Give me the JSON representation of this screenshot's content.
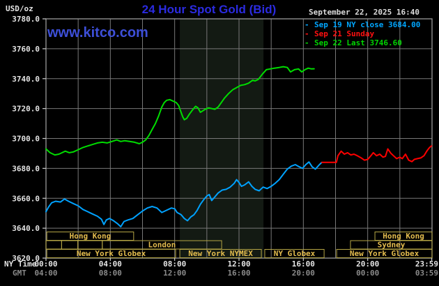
{
  "header": {
    "unit_label": "USD/oz",
    "title": "24 Hour Spot Gold (Bid)",
    "watermark": "www.kitco.com",
    "datetime": "September 22, 2025 16:40"
  },
  "legend": {
    "items": [
      {
        "dash": "-",
        "label": "Sep 19 NY close 3684.00",
        "color": "#00a6ff"
      },
      {
        "dash": "-",
        "label": "Sep 21 Sunday",
        "color": "#ff1010"
      },
      {
        "dash": "-",
        "label": "Sep 22 Last 3746.60",
        "color": "#00d400"
      }
    ]
  },
  "axis_corner": {
    "ny_time": "NY Time",
    "gmt": "GMT"
  },
  "chart_data": {
    "type": "line",
    "title": "24 Hour Spot Gold (Bid)",
    "ylabel": "USD/oz",
    "ylim": [
      3620,
      3780
    ],
    "y_step": 20,
    "x_range_hours": [
      0,
      24
    ],
    "x_grid_step_hours": 2,
    "grid_color": "#787878",
    "border_color": "#9a9a9a",
    "nymex_band": {
      "start_h": 8.32,
      "end_h": 13.52,
      "color": "#131a13"
    },
    "x_ticks": [
      {
        "t": 0,
        "ny": "00:00",
        "gmt": "04:00"
      },
      {
        "t": 4,
        "ny": "04:00",
        "gmt": "08:00"
      },
      {
        "t": 8,
        "ny": "08:00",
        "gmt": "12:00"
      },
      {
        "t": 12,
        "ny": "12:00",
        "gmt": "16:00"
      },
      {
        "t": 16,
        "ny": "16:00",
        "gmt": "20:00"
      },
      {
        "t": 20,
        "ny": "20:00",
        "gmt": "00:00"
      },
      {
        "t": 23.983,
        "ny": "23:59",
        "gmt": "03:59",
        "align_end": true
      }
    ],
    "series": [
      {
        "name": "Sep 19 NY close",
        "color": "#00a2ff",
        "last": 3684.0,
        "points": [
          [
            0.0,
            3651
          ],
          [
            0.15,
            3654
          ],
          [
            0.35,
            3657
          ],
          [
            0.6,
            3658
          ],
          [
            0.9,
            3657.5
          ],
          [
            1.15,
            3659.5
          ],
          [
            1.4,
            3658
          ],
          [
            1.7,
            3656.5
          ],
          [
            2.0,
            3655
          ],
          [
            2.3,
            3652.5
          ],
          [
            2.6,
            3651
          ],
          [
            2.9,
            3649.5
          ],
          [
            3.2,
            3648
          ],
          [
            3.45,
            3646
          ],
          [
            3.6,
            3642.5
          ],
          [
            3.75,
            3645.5
          ],
          [
            3.95,
            3646.5
          ],
          [
            4.2,
            3645
          ],
          [
            4.45,
            3643
          ],
          [
            4.65,
            3641
          ],
          [
            4.85,
            3644.5
          ],
          [
            5.1,
            3645.5
          ],
          [
            5.4,
            3646.5
          ],
          [
            5.7,
            3649
          ],
          [
            6.0,
            3651.5
          ],
          [
            6.3,
            3653.5
          ],
          [
            6.6,
            3654.5
          ],
          [
            6.9,
            3653.5
          ],
          [
            7.2,
            3650.5
          ],
          [
            7.5,
            3652
          ],
          [
            7.8,
            3653.5
          ],
          [
            8.0,
            3653
          ],
          [
            8.15,
            3650.5
          ],
          [
            8.4,
            3649
          ],
          [
            8.6,
            3646.5
          ],
          [
            8.8,
            3645
          ],
          [
            9.0,
            3647.5
          ],
          [
            9.2,
            3649
          ],
          [
            9.4,
            3652
          ],
          [
            9.6,
            3656
          ],
          [
            9.8,
            3659
          ],
          [
            10.0,
            3661.5
          ],
          [
            10.15,
            3662.5
          ],
          [
            10.3,
            3658.5
          ],
          [
            10.5,
            3661
          ],
          [
            10.7,
            3663.5
          ],
          [
            10.95,
            3665.5
          ],
          [
            11.2,
            3666
          ],
          [
            11.45,
            3667.5
          ],
          [
            11.7,
            3670
          ],
          [
            11.85,
            3672.5
          ],
          [
            12.0,
            3670.5
          ],
          [
            12.15,
            3668
          ],
          [
            12.35,
            3669
          ],
          [
            12.6,
            3671
          ],
          [
            12.8,
            3668
          ],
          [
            13.0,
            3666
          ],
          [
            13.25,
            3665
          ],
          [
            13.5,
            3667.5
          ],
          [
            13.75,
            3666.5
          ],
          [
            14.0,
            3668
          ],
          [
            14.25,
            3670
          ],
          [
            14.5,
            3672.5
          ],
          [
            14.75,
            3676
          ],
          [
            15.0,
            3679.5
          ],
          [
            15.25,
            3681.5
          ],
          [
            15.5,
            3682.5
          ],
          [
            15.75,
            3681
          ],
          [
            15.95,
            3680
          ],
          [
            16.15,
            3682.5
          ],
          [
            16.35,
            3684.3
          ],
          [
            16.55,
            3681
          ],
          [
            16.75,
            3679.5
          ],
          [
            17.0,
            3682.5
          ],
          [
            17.15,
            3684
          ]
        ]
      },
      {
        "name": "Sep 21 Sunday",
        "color": "#ff0000",
        "points": [
          [
            17.15,
            3684
          ],
          [
            18.05,
            3684
          ],
          [
            18.15,
            3688.5
          ],
          [
            18.35,
            3691.5
          ],
          [
            18.55,
            3689.5
          ],
          [
            18.75,
            3690.5
          ],
          [
            18.95,
            3689
          ],
          [
            19.15,
            3689.5
          ],
          [
            19.35,
            3688.5
          ],
          [
            19.6,
            3687
          ],
          [
            19.8,
            3685.5
          ],
          [
            20.0,
            3686
          ],
          [
            20.2,
            3688.5
          ],
          [
            20.35,
            3690.5
          ],
          [
            20.55,
            3688.5
          ],
          [
            20.75,
            3689.5
          ],
          [
            20.95,
            3687.5
          ],
          [
            21.1,
            3688
          ],
          [
            21.25,
            3693
          ],
          [
            21.45,
            3690
          ],
          [
            21.6,
            3688.5
          ],
          [
            21.8,
            3686.5
          ],
          [
            22.0,
            3687.5
          ],
          [
            22.15,
            3686.5
          ],
          [
            22.35,
            3689.5
          ],
          [
            22.55,
            3685.5
          ],
          [
            22.75,
            3684.5
          ],
          [
            22.9,
            3686
          ],
          [
            23.1,
            3686.5
          ],
          [
            23.3,
            3687
          ],
          [
            23.5,
            3688.5
          ],
          [
            23.7,
            3692
          ],
          [
            23.85,
            3694
          ],
          [
            23.97,
            3695
          ]
        ]
      },
      {
        "name": "Sep 22 Last",
        "color": "#00dd00",
        "last": 3746.6,
        "points": [
          [
            0.0,
            3693
          ],
          [
            0.25,
            3690.5
          ],
          [
            0.55,
            3689
          ],
          [
            0.8,
            3689.5
          ],
          [
            1.0,
            3690.5
          ],
          [
            1.2,
            3691.5
          ],
          [
            1.45,
            3690.5
          ],
          [
            1.7,
            3691
          ],
          [
            2.0,
            3692.5
          ],
          [
            2.3,
            3694
          ],
          [
            2.6,
            3695
          ],
          [
            2.9,
            3696
          ],
          [
            3.2,
            3697
          ],
          [
            3.5,
            3697.5
          ],
          [
            3.8,
            3697
          ],
          [
            4.1,
            3698
          ],
          [
            4.4,
            3699
          ],
          [
            4.65,
            3698
          ],
          [
            4.9,
            3698.5
          ],
          [
            5.2,
            3698
          ],
          [
            5.5,
            3697.5
          ],
          [
            5.8,
            3696.5
          ],
          [
            6.0,
            3697.5
          ],
          [
            6.2,
            3699
          ],
          [
            6.4,
            3702
          ],
          [
            6.6,
            3706
          ],
          [
            6.8,
            3710
          ],
          [
            7.0,
            3715
          ],
          [
            7.2,
            3721
          ],
          [
            7.35,
            3724
          ],
          [
            7.5,
            3725.5
          ],
          [
            7.7,
            3726
          ],
          [
            7.9,
            3725
          ],
          [
            8.1,
            3724
          ],
          [
            8.25,
            3722
          ],
          [
            8.35,
            3719
          ],
          [
            8.5,
            3714.5
          ],
          [
            8.6,
            3712.5
          ],
          [
            8.75,
            3713.5
          ],
          [
            8.9,
            3716
          ],
          [
            9.1,
            3719
          ],
          [
            9.3,
            3721.5
          ],
          [
            9.45,
            3720.5
          ],
          [
            9.6,
            3717.5
          ],
          [
            9.75,
            3718.5
          ],
          [
            9.9,
            3719.5
          ],
          [
            10.1,
            3720.5
          ],
          [
            10.3,
            3720
          ],
          [
            10.5,
            3719.5
          ],
          [
            10.7,
            3721
          ],
          [
            10.9,
            3724
          ],
          [
            11.1,
            3727
          ],
          [
            11.35,
            3730
          ],
          [
            11.6,
            3732.5
          ],
          [
            11.85,
            3734
          ],
          [
            12.1,
            3735.5
          ],
          [
            12.35,
            3736
          ],
          [
            12.6,
            3737
          ],
          [
            12.85,
            3739
          ],
          [
            13.0,
            3738.5
          ],
          [
            13.2,
            3739.5
          ],
          [
            13.45,
            3743
          ],
          [
            13.7,
            3746
          ],
          [
            13.95,
            3746.5
          ],
          [
            14.2,
            3747
          ],
          [
            14.5,
            3747.5
          ],
          [
            14.75,
            3748
          ],
          [
            15.0,
            3747.5
          ],
          [
            15.2,
            3744.5
          ],
          [
            15.45,
            3746
          ],
          [
            15.7,
            3746.5
          ],
          [
            15.9,
            3744.5
          ],
          [
            16.1,
            3746
          ],
          [
            16.3,
            3747
          ],
          [
            16.5,
            3746.5
          ],
          [
            16.67,
            3746.6
          ]
        ]
      }
    ],
    "sessions": {
      "box_color": "#b5a545",
      "label_color": "#e3bc4e",
      "rows": [
        [
          {
            "label": "Hong Kong",
            "start_h": 0.05,
            "end_h": 5.45
          },
          {
            "label": "Hong Kong",
            "start_h": 20.45,
            "end_h": 24
          }
        ],
        [
          {
            "label": "",
            "start_h": 0,
            "end_h": 0.97
          },
          {
            "label": "",
            "start_h": 0.97,
            "end_h": 1.98
          },
          {
            "label": "",
            "start_h": 1.98,
            "end_h": 3.5
          },
          {
            "label": "London",
            "start_h": 3.5,
            "end_h": 10.92
          },
          {
            "label": "Sydney",
            "start_h": 18.93,
            "end_h": 24
          }
        ],
        [
          {
            "label": "New York Globex",
            "start_h": 0.05,
            "end_h": 8.06
          },
          {
            "label": "New York NYMEX",
            "start_h": 8.32,
            "end_h": 13.39
          },
          {
            "label": "NY Globex",
            "start_h": 13.6,
            "end_h": 17.29
          },
          {
            "label": "New York Globex",
            "start_h": 18.07,
            "end_h": 24
          }
        ]
      ]
    }
  }
}
